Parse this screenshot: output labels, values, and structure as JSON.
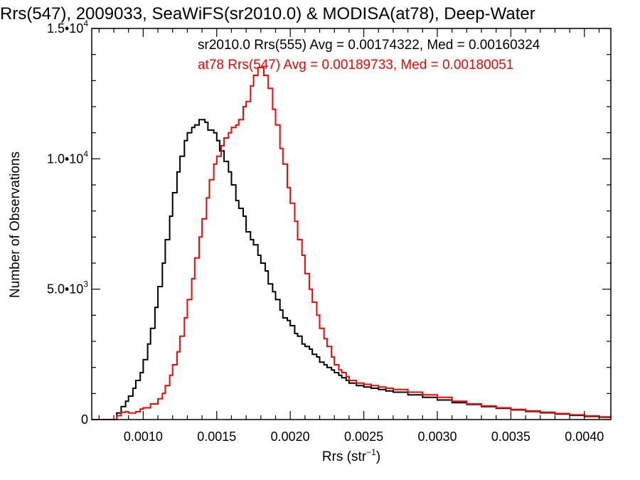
{
  "chart_data": {
    "type": "line",
    "title": "Rrs(547), 2009033, SeaWiFS(sr2010.0) & MODISA(at78), Deep-Water",
    "xlabel_base": "Rrs (str",
    "xlabel_sup": "−1",
    "xlabel_tail": ")",
    "ylabel": "Number of Observations",
    "xlim": [
      0.00065,
      0.00418
    ],
    "ylim": [
      0,
      15000
    ],
    "x_tick_values": [
      0.001,
      0.0015,
      0.002,
      0.0025,
      0.003,
      0.0035,
      0.004
    ],
    "x_tick_labels": [
      "0.0010",
      "0.0015",
      "0.0020",
      "0.0025",
      "0.0030",
      "0.0035",
      "0.0040"
    ],
    "y_ticks": [
      {
        "value": 0,
        "base": "0",
        "exp": ""
      },
      {
        "value": 5000,
        "base": "5.0•10",
        "exp": "3"
      },
      {
        "value": 10000,
        "base": "1.0•10",
        "exp": "4"
      },
      {
        "value": 15000,
        "base": "1.5•10",
        "exp": "4"
      }
    ],
    "legend": [
      {
        "text": "sr2010.0 Rrs(555) Avg = 0.00174322, Med = 0.00160324",
        "color": "#000000"
      },
      {
        "text": "at78 Rrs(547) Avg = 0.00189733, Med = 0.00180051",
        "color": "#ff0000"
      }
    ],
    "series": [
      {
        "name": "sr2010.0 Rrs(555)",
        "color": "#000000",
        "x": [
          0.00065,
          0.0008,
          0.00082,
          0.00085,
          0.00088,
          0.0009,
          0.00093,
          0.00095,
          0.00098,
          0.001,
          0.00103,
          0.00105,
          0.00108,
          0.0011,
          0.00113,
          0.00115,
          0.00118,
          0.0012,
          0.00123,
          0.00125,
          0.00128,
          0.0013,
          0.00133,
          0.00135,
          0.00138,
          0.0014,
          0.00142,
          0.00144,
          0.00146,
          0.00148,
          0.0015,
          0.00152,
          0.00155,
          0.00158,
          0.0016,
          0.00163,
          0.00165,
          0.00168,
          0.0017,
          0.00173,
          0.00175,
          0.00178,
          0.0018,
          0.00183,
          0.00185,
          0.00188,
          0.0019,
          0.00193,
          0.00195,
          0.00198,
          0.002,
          0.00203,
          0.00205,
          0.00208,
          0.0021,
          0.00213,
          0.00215,
          0.00218,
          0.0022,
          0.00223,
          0.00225,
          0.00228,
          0.0023,
          0.00233,
          0.00235,
          0.00238,
          0.0024,
          0.00245,
          0.0025,
          0.00255,
          0.0026,
          0.00265,
          0.0027,
          0.0028,
          0.0029,
          0.003,
          0.0031,
          0.0032,
          0.0033,
          0.0034,
          0.0035,
          0.0036,
          0.0037,
          0.0038,
          0.0039,
          0.004,
          0.0041,
          0.00418
        ],
        "y": [
          0,
          0,
          250,
          500,
          700,
          900,
          1200,
          1500,
          1800,
          2300,
          2900,
          3500,
          4300,
          5100,
          6000,
          6900,
          7800,
          8700,
          9500,
          10100,
          10700,
          11000,
          11200,
          11300,
          11500,
          11500,
          11400,
          11100,
          11100,
          11000,
          10700,
          10300,
          9900,
          9500,
          9000,
          8400,
          8100,
          7800,
          7200,
          6900,
          6700,
          6300,
          6000,
          5700,
          5200,
          4900,
          4600,
          4200,
          3900,
          3800,
          3600,
          3300,
          3200,
          2900,
          2800,
          2700,
          2500,
          2400,
          2200,
          2100,
          2000,
          1900,
          1800,
          1700,
          1600,
          1500,
          1400,
          1300,
          1250,
          1200,
          1150,
          1100,
          1050,
          950,
          850,
          750,
          650,
          580,
          500,
          430,
          370,
          310,
          260,
          210,
          160,
          120,
          90,
          70
        ]
      },
      {
        "name": "at78 Rrs(547)",
        "color": "#ff0000",
        "x": [
          0.00065,
          0.0008,
          0.00082,
          0.00085,
          0.00088,
          0.0009,
          0.00093,
          0.00095,
          0.00098,
          0.001,
          0.00105,
          0.0011,
          0.00113,
          0.00115,
          0.00118,
          0.0012,
          0.00123,
          0.00125,
          0.00128,
          0.0013,
          0.00133,
          0.00135,
          0.00138,
          0.0014,
          0.00143,
          0.00145,
          0.00148,
          0.0015,
          0.00153,
          0.00155,
          0.00158,
          0.0016,
          0.00163,
          0.00165,
          0.00168,
          0.0017,
          0.00173,
          0.00175,
          0.00178,
          0.0018,
          0.00182,
          0.00185,
          0.00188,
          0.0019,
          0.00193,
          0.00195,
          0.00198,
          0.002,
          0.00203,
          0.00205,
          0.00208,
          0.0021,
          0.00213,
          0.00215,
          0.00218,
          0.0022,
          0.00223,
          0.00225,
          0.00228,
          0.0023,
          0.00233,
          0.00235,
          0.00238,
          0.0024,
          0.00245,
          0.0025,
          0.00255,
          0.0026,
          0.00265,
          0.0027,
          0.0028,
          0.0029,
          0.003,
          0.0031,
          0.0032,
          0.0033,
          0.0034,
          0.0035,
          0.0036,
          0.0037,
          0.0038,
          0.0039,
          0.004,
          0.0041,
          0.00418
        ],
        "y": [
          0,
          0,
          150,
          280,
          300,
          250,
          250,
          300,
          400,
          450,
          600,
          800,
          1000,
          1300,
          1700,
          2100,
          2600,
          3200,
          3900,
          4600,
          5400,
          6200,
          7000,
          7700,
          8500,
          9200,
          9800,
          10100,
          10500,
          10800,
          11000,
          11200,
          11300,
          11500,
          12000,
          12200,
          12800,
          13200,
          13500,
          13500,
          13200,
          12700,
          11900,
          11300,
          10400,
          9800,
          8900,
          8300,
          7600,
          6900,
          6300,
          5600,
          5000,
          4500,
          4000,
          3500,
          3100,
          2800,
          2400,
          2100,
          1900,
          1800,
          1650,
          1500,
          1400,
          1350,
          1300,
          1250,
          1200,
          1150,
          1050,
          950,
          850,
          700,
          600,
          520,
          450,
          390,
          330,
          280,
          230,
          180,
          140,
          100,
          70
        ]
      }
    ]
  }
}
